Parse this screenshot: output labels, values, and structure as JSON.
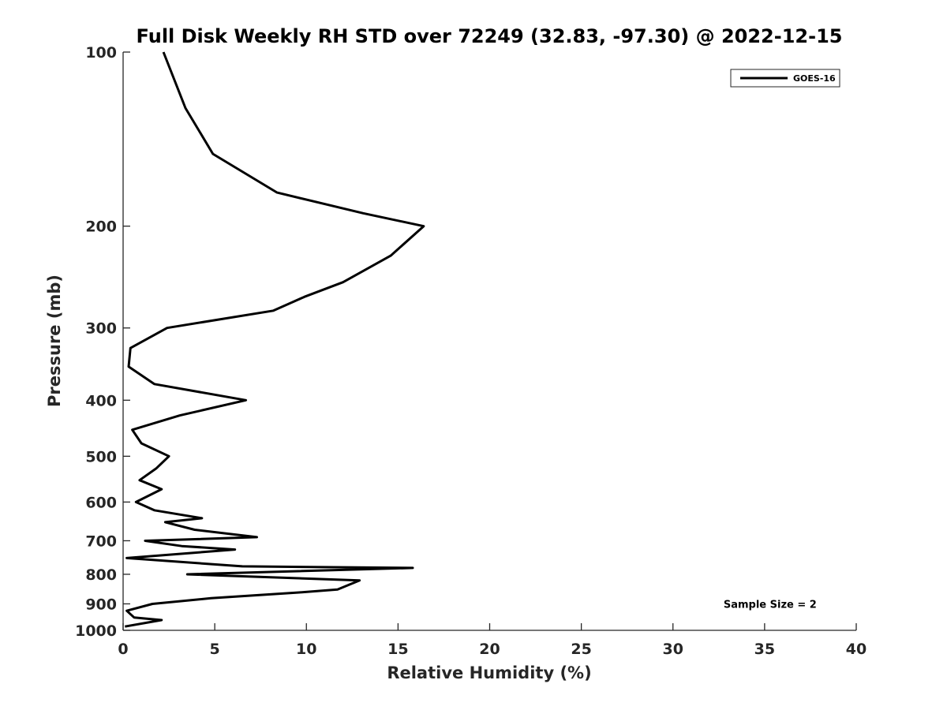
{
  "chart_data": {
    "type": "line",
    "title": "Full Disk Weekly RH STD over 72249 (32.83, -97.30) @ 2022-12-15",
    "xlabel": "Relative Humidity (%)",
    "ylabel": "Pressure (mb)",
    "xlim": [
      0,
      40
    ],
    "ylim": [
      100,
      1000
    ],
    "y_scale": "log",
    "y_reversed": true,
    "grid": false,
    "legend_position": "top-right",
    "x_ticks": [
      0,
      5,
      10,
      15,
      20,
      25,
      30,
      35,
      40
    ],
    "x_tick_labels": [
      "0",
      "5",
      "10",
      "15",
      "20",
      "25",
      "30",
      "35",
      "40"
    ],
    "y_ticks": [
      100,
      200,
      300,
      400,
      500,
      600,
      700,
      800,
      900,
      1000
    ],
    "y_tick_labels": [
      "100",
      "200",
      "300",
      "400",
      "500",
      "600",
      "700",
      "800",
      "900",
      "1000"
    ],
    "series": [
      {
        "name": "GOES-16",
        "color": "#000000",
        "points": [
          [
            2.2,
            100
          ],
          [
            3.4,
            125
          ],
          [
            4.9,
            150
          ],
          [
            8.4,
            175
          ],
          [
            13.1,
            190
          ],
          [
            16.4,
            200
          ],
          [
            14.6,
            225
          ],
          [
            12.0,
            250
          ],
          [
            9.9,
            265
          ],
          [
            8.2,
            280
          ],
          [
            2.4,
            300
          ],
          [
            0.4,
            325
          ],
          [
            0.3,
            350
          ],
          [
            1.7,
            375
          ],
          [
            6.7,
            400
          ],
          [
            3.1,
            425
          ],
          [
            0.5,
            450
          ],
          [
            1.0,
            475
          ],
          [
            2.5,
            500
          ],
          [
            1.8,
            525
          ],
          [
            0.9,
            550
          ],
          [
            2.1,
            570
          ],
          [
            0.7,
            600
          ],
          [
            1.7,
            620
          ],
          [
            4.3,
            640
          ],
          [
            2.3,
            650
          ],
          [
            3.9,
            670
          ],
          [
            7.3,
            690
          ],
          [
            1.2,
            700
          ],
          [
            3.2,
            715
          ],
          [
            6.1,
            725
          ],
          [
            0.2,
            750
          ],
          [
            6.5,
            775
          ],
          [
            15.8,
            780
          ],
          [
            3.5,
            800
          ],
          [
            12.9,
            820
          ],
          [
            11.7,
            850
          ],
          [
            9.6,
            860
          ],
          [
            4.8,
            880
          ],
          [
            1.6,
            900
          ],
          [
            0.2,
            925
          ],
          [
            0.6,
            950
          ],
          [
            2.1,
            960
          ],
          [
            0.1,
            985
          ]
        ]
      }
    ],
    "annotations": [
      {
        "text": "Sample Size = 2",
        "x": 35.3,
        "y": 900
      }
    ]
  }
}
